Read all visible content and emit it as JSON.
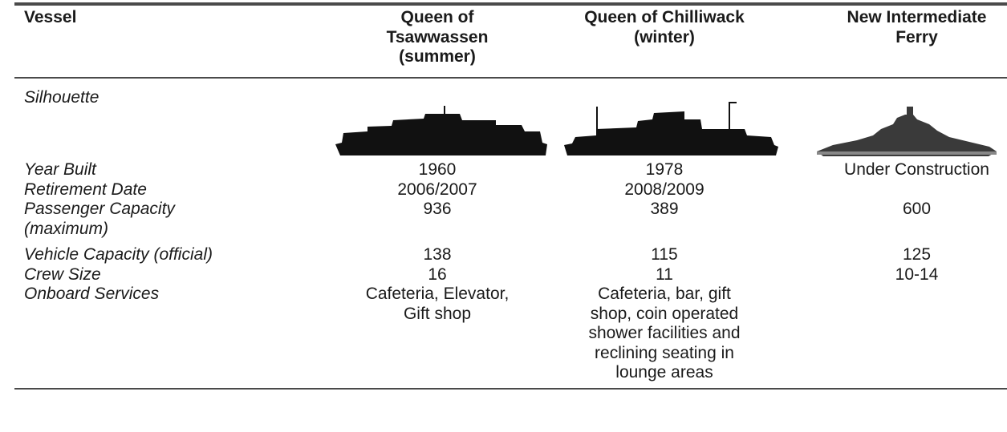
{
  "table": {
    "header": [
      "Vessel",
      "Queen of\nTsawwassen\n(summer)",
      "Queen of Chilliwack\n(winter)",
      "New Intermediate\nFerry"
    ],
    "silhouette_label": "Silhouette",
    "rows": [
      [
        "Year Built",
        1960,
        1978,
        "Under Construction"
      ],
      [
        "Retirement Date",
        "2006/2007",
        "2008/2009",
        null
      ],
      [
        "Passenger Capacity\n(maximum)",
        936,
        389,
        600
      ],
      [
        "Vehicle Capacity (official)",
        138,
        115,
        125
      ],
      [
        "Crew Size",
        16,
        11,
        "10-14"
      ],
      [
        "Onboard Services",
        "Cafeteria, Elevator,\nGift shop",
        "Cafeteria, bar, gift\nshop, coin operated\nshower facilities and\nreclining seating in\nlounge areas",
        null
      ]
    ]
  }
}
